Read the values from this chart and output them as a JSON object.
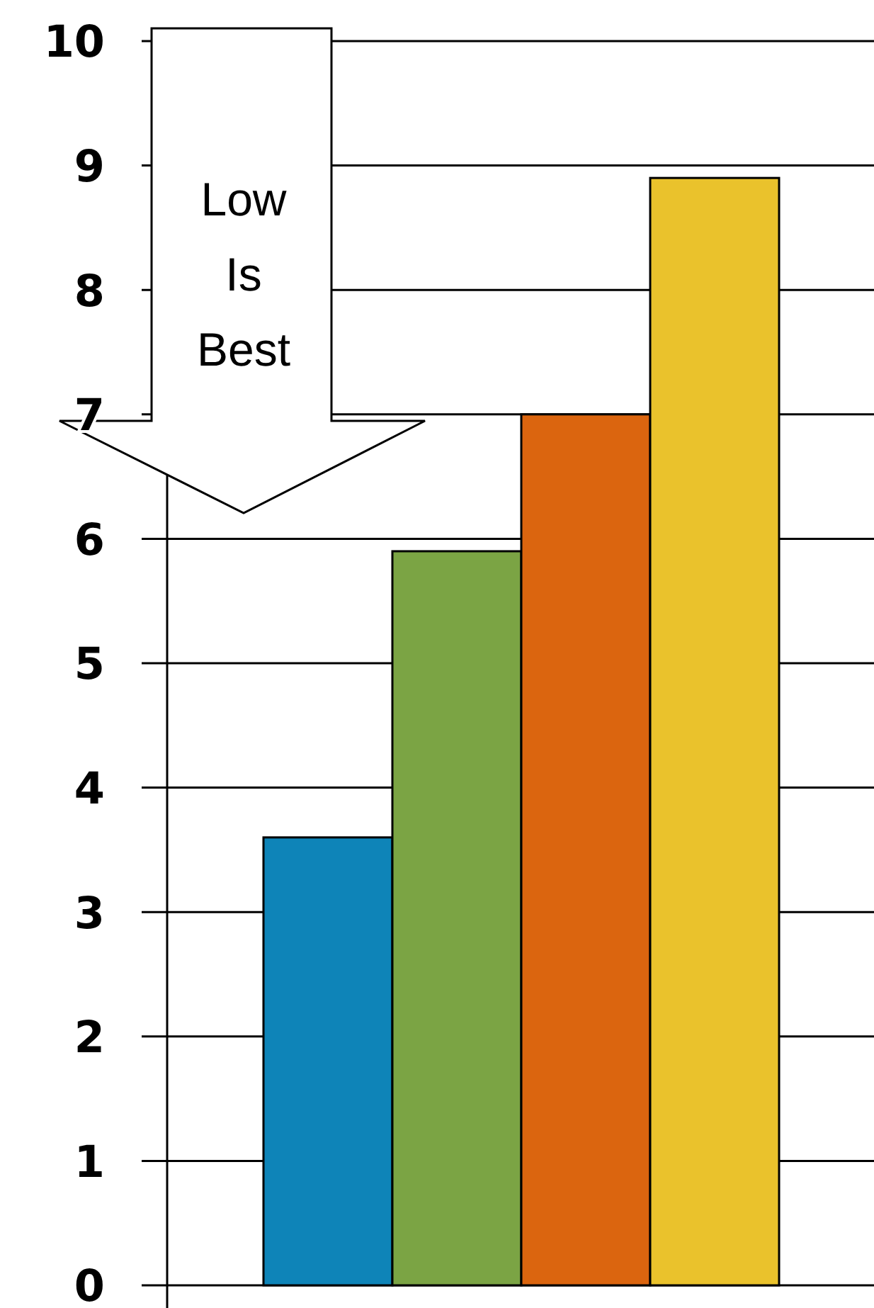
{
  "chart_data": {
    "type": "bar",
    "categories": [
      null,
      null,
      null,
      null
    ],
    "values": [
      3.6,
      5.9,
      7.0,
      8.9
    ],
    "colors": [
      "#0e84b8",
      "#7ba444",
      "#db650f",
      "#eac22c"
    ],
    "ylim": [
      0,
      10
    ],
    "yticks": [
      0,
      1,
      2,
      3,
      4,
      5,
      6,
      7,
      8,
      9,
      10
    ],
    "grid": "y",
    "annotations": [
      "Low Is Best"
    ]
  }
}
